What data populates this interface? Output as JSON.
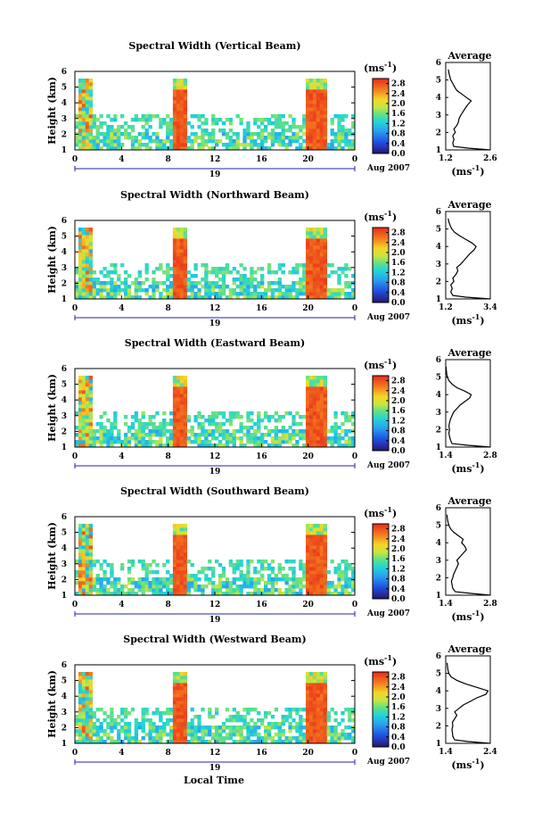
{
  "figure": {
    "date_label": "Aug 2007",
    "day_label": "19",
    "xlabel_bottom": "Local Time",
    "colorbar_unit": "(ms",
    "colorbar_unit_exp": "-1",
    "colorbar_unit_close": ")",
    "avg_unit": "(ms",
    "avg_unit_exp": "-1",
    "avg_unit_close": ")",
    "avg_title": "Average"
  },
  "chart_data": [
    {
      "type": "heatmap",
      "title": "Spectral Width (Vertical Beam)",
      "ylabel": "Height (km)",
      "x_ticks": [
        "0",
        "4",
        "8",
        "12",
        "16",
        "20",
        "0"
      ],
      "xlim": [
        0,
        24
      ],
      "y_ticks": [
        "1",
        "2",
        "3",
        "4",
        "5",
        "6"
      ],
      "ylim": [
        1,
        6
      ],
      "colorbar_ticks": [
        "0.0",
        "0.4",
        "0.8",
        "1.2",
        "1.6",
        "2.0",
        "2.4",
        "2.8"
      ],
      "colorbar_range": [
        0,
        3.0
      ],
      "profile": {
        "title": "Average",
        "xlim": [
          1.2,
          2.6
        ],
        "x_ticks": [
          "1.2",
          "2.6"
        ],
        "y_ticks": [
          "1",
          "2",
          "3",
          "4",
          "5",
          "6"
        ],
        "height": [
          1.0,
          1.1,
          1.2,
          1.4,
          1.6,
          1.8,
          2.0,
          2.2,
          2.4,
          2.6,
          2.8,
          3.0,
          3.2,
          3.4,
          3.6,
          3.8,
          4.0,
          4.2,
          4.4,
          4.6,
          4.8,
          5.0,
          5.2,
          5.4,
          5.6
        ],
        "value": [
          2.6,
          1.9,
          1.45,
          1.42,
          1.46,
          1.42,
          1.5,
          1.46,
          1.55,
          1.6,
          1.62,
          1.68,
          1.75,
          1.82,
          1.9,
          2.0,
          1.85,
          1.7,
          1.55,
          1.48,
          1.42,
          1.36,
          1.33,
          1.3,
          1.28
        ]
      }
    },
    {
      "type": "heatmap",
      "title": "Spectral Width (Northward Beam)",
      "ylabel": "Height (km)",
      "x_ticks": [
        "0",
        "4",
        "8",
        "12",
        "16",
        "20",
        "0"
      ],
      "xlim": [
        0,
        24
      ],
      "y_ticks": [
        "1",
        "2",
        "3",
        "4",
        "5",
        "6"
      ],
      "ylim": [
        1,
        6
      ],
      "colorbar_ticks": [
        "0.0",
        "0.4",
        "0.8",
        "1.2",
        "1.6",
        "2.0",
        "2.4",
        "2.8"
      ],
      "colorbar_range": [
        0,
        3.0
      ],
      "profile": {
        "title": "Average",
        "xlim": [
          1.2,
          3.4
        ],
        "x_ticks": [
          "1.2",
          "3.4"
        ],
        "y_ticks": [
          "1",
          "2",
          "3",
          "4",
          "5",
          "6"
        ],
        "height": [
          1.0,
          1.1,
          1.2,
          1.4,
          1.6,
          1.8,
          2.0,
          2.2,
          2.4,
          2.6,
          2.8,
          3.0,
          3.2,
          3.4,
          3.6,
          3.8,
          4.0,
          4.2,
          4.4,
          4.6,
          4.8,
          5.0,
          5.2,
          5.4,
          5.6
        ],
        "value": [
          3.4,
          2.2,
          1.55,
          1.45,
          1.52,
          1.45,
          1.6,
          1.55,
          1.7,
          1.8,
          1.75,
          1.95,
          2.1,
          2.25,
          2.4,
          2.6,
          2.7,
          2.5,
          2.2,
          1.9,
          1.65,
          1.5,
          1.42,
          1.36,
          1.32
        ]
      }
    },
    {
      "type": "heatmap",
      "title": "Spectral Width (Eastward Beam)",
      "ylabel": "Height (km)",
      "x_ticks": [
        "0",
        "4",
        "8",
        "12",
        "16",
        "20",
        "0"
      ],
      "xlim": [
        0,
        24
      ],
      "y_ticks": [
        "1",
        "2",
        "3",
        "4",
        "5",
        "6"
      ],
      "ylim": [
        1,
        6
      ],
      "colorbar_ticks": [
        "0.0",
        "0.4",
        "0.8",
        "1.2",
        "1.6",
        "2.0",
        "2.4",
        "2.8"
      ],
      "colorbar_range": [
        0,
        3.0
      ],
      "profile": {
        "title": "Average",
        "xlim": [
          1.4,
          2.8
        ],
        "x_ticks": [
          "1.4",
          "2.8"
        ],
        "y_ticks": [
          "1",
          "2",
          "3",
          "4",
          "5",
          "6"
        ],
        "height": [
          1.0,
          1.1,
          1.2,
          1.4,
          1.6,
          1.8,
          2.0,
          2.2,
          2.4,
          2.6,
          2.8,
          3.0,
          3.2,
          3.4,
          3.6,
          3.8,
          4.0,
          4.2,
          4.4,
          4.6,
          4.8,
          5.0,
          5.2,
          5.4,
          5.6
        ],
        "value": [
          2.8,
          2.1,
          1.6,
          1.55,
          1.52,
          1.5,
          1.52,
          1.5,
          1.52,
          1.55,
          1.6,
          1.65,
          1.75,
          1.85,
          2.0,
          2.15,
          2.2,
          2.0,
          1.75,
          1.6,
          1.5,
          1.45,
          1.43,
          1.42,
          1.41
        ]
      }
    },
    {
      "type": "heatmap",
      "title": "Spectral Width (Southward Beam)",
      "ylabel": "Height (km)",
      "x_ticks": [
        "0",
        "4",
        "8",
        "12",
        "16",
        "20",
        "0"
      ],
      "xlim": [
        0,
        24
      ],
      "y_ticks": [
        "1",
        "2",
        "3",
        "4",
        "5",
        "6"
      ],
      "ylim": [
        1,
        6
      ],
      "colorbar_ticks": [
        "0.0",
        "0.4",
        "0.8",
        "1.2",
        "1.6",
        "2.0",
        "2.4",
        "2.8"
      ],
      "colorbar_range": [
        0,
        3.0
      ],
      "profile": {
        "title": "Average",
        "xlim": [
          1.4,
          2.8
        ],
        "x_ticks": [
          "1.4",
          "2.8"
        ],
        "y_ticks": [
          "1",
          "2",
          "3",
          "4",
          "5",
          "6"
        ],
        "height": [
          1.0,
          1.1,
          1.2,
          1.4,
          1.6,
          1.8,
          2.0,
          2.2,
          2.4,
          2.6,
          2.8,
          3.0,
          3.2,
          3.4,
          3.6,
          3.8,
          4.0,
          4.2,
          4.4,
          4.6,
          4.8,
          5.0,
          5.2,
          5.4,
          5.6
        ],
        "value": [
          2.8,
          2.2,
          1.7,
          1.62,
          1.6,
          1.58,
          1.62,
          1.65,
          1.7,
          1.75,
          1.8,
          1.75,
          1.85,
          1.95,
          2.05,
          2.0,
          1.9,
          1.95,
          1.8,
          1.65,
          1.55,
          1.5,
          1.47,
          1.45,
          1.44
        ]
      }
    },
    {
      "type": "heatmap",
      "title": "Spectral Width (Westward Beam)",
      "ylabel": "Height (km)",
      "x_ticks": [
        "0",
        "4",
        "8",
        "12",
        "16",
        "20",
        "0"
      ],
      "xlim": [
        0,
        24
      ],
      "y_ticks": [
        "1",
        "2",
        "3",
        "4",
        "5",
        "6"
      ],
      "ylim": [
        1,
        6
      ],
      "colorbar_ticks": [
        "0.0",
        "0.4",
        "0.8",
        "1.2",
        "1.6",
        "2.0",
        "2.4",
        "2.8"
      ],
      "colorbar_range": [
        0,
        3.0
      ],
      "profile": {
        "title": "Average",
        "xlim": [
          1.4,
          2.4
        ],
        "x_ticks": [
          "1.4",
          "2.4"
        ],
        "y_ticks": [
          "1",
          "2",
          "3",
          "4",
          "5",
          "6"
        ],
        "height": [
          1.0,
          1.1,
          1.2,
          1.4,
          1.6,
          1.8,
          2.0,
          2.2,
          2.4,
          2.6,
          2.8,
          3.0,
          3.2,
          3.4,
          3.6,
          3.8,
          4.0,
          4.2,
          4.4,
          4.6,
          4.8,
          5.0,
          5.2,
          5.4,
          5.6
        ],
        "value": [
          2.4,
          1.9,
          1.6,
          1.56,
          1.55,
          1.54,
          1.56,
          1.55,
          1.6,
          1.65,
          1.6,
          1.7,
          1.8,
          1.95,
          2.1,
          2.3,
          2.35,
          2.1,
          1.85,
          1.65,
          1.52,
          1.47,
          1.45,
          1.44,
          1.43
        ]
      }
    }
  ]
}
